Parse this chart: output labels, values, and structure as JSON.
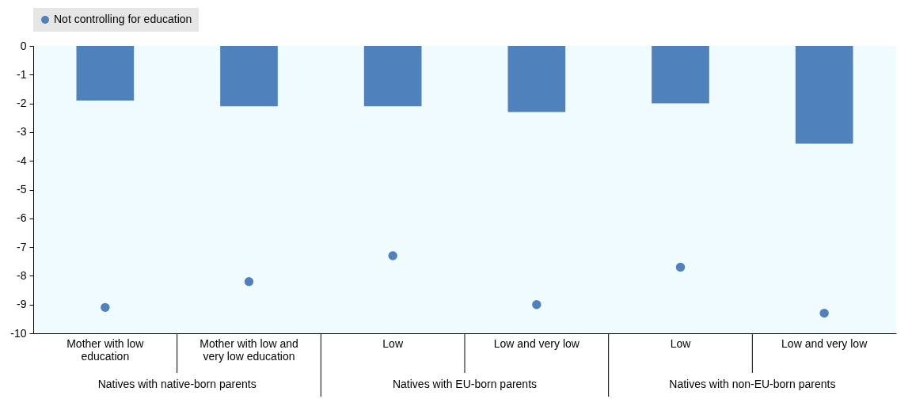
{
  "chart_data": {
    "type": "bar",
    "categories": [
      "Mother with low education",
      "Mother with low and very low education",
      "Low",
      "Low and very low",
      "Low",
      "Low and very low"
    ],
    "series": [
      {
        "color": "#4f81bd",
        "values": [
          -1.9,
          -2.1,
          -2.1,
          -2.3,
          -2.0,
          -3.4
        ]
      },
      {
        "type": "scatter",
        "name": "Not controlling for education",
        "color": "#4f81bd",
        "values": [
          -9.1,
          -8.2,
          -7.3,
          -9.0,
          -7.7,
          -9.3
        ]
      }
    ],
    "ylim": [
      -10,
      0
    ],
    "yticks": [
      0,
      -1,
      -2,
      -3,
      -4,
      -5,
      -6,
      -7,
      -8,
      -9,
      -10
    ],
    "legend": "top",
    "annotations": [
      "Natives with native-born parents",
      "Natives with EU-born parents",
      "Natives with non-EU-born parents"
    ]
  }
}
